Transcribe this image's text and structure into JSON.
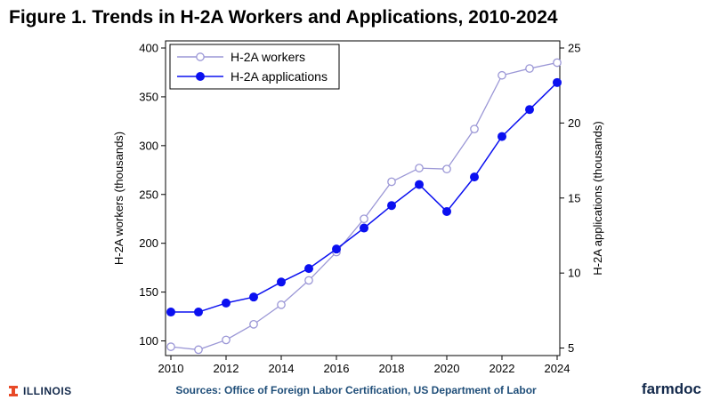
{
  "title": "Figure 1. Trends in H-2A Workers and Applications, 2010-2024",
  "footer": {
    "source": "Sources: Office of Foreign Labor Certification, US Department of Labor",
    "left_logo": "ILLINOIS",
    "right_logo": "farmdoc"
  },
  "colors": {
    "workers": "#9b97d6",
    "applications": "#0b10f0",
    "illinois_orange": "#e84a27",
    "illinois_blue": "#13294b"
  },
  "chart_data": {
    "type": "line",
    "x": [
      2010,
      2011,
      2012,
      2013,
      2014,
      2015,
      2016,
      2017,
      2018,
      2019,
      2020,
      2021,
      2022,
      2023,
      2024
    ],
    "xticks": [
      2010,
      2012,
      2014,
      2016,
      2018,
      2020,
      2022,
      2024
    ],
    "xlim": [
      2010,
      2024
    ],
    "y_left_label": "H-2A workers (thousands)",
    "y_left_ticks": [
      100,
      150,
      200,
      250,
      300,
      350,
      400
    ],
    "y_left_lim": [
      85,
      400
    ],
    "y_right_label": "H-2A applications (thousands)",
    "y_right_ticks": [
      5,
      10,
      15,
      20,
      25
    ],
    "y_right_lim": [
      4.5,
      25
    ],
    "grid": false,
    "legend_position": "top-left",
    "series": [
      {
        "name": "H-2A workers",
        "axis": "left",
        "marker": "hollow-circle",
        "values": [
          94,
          91,
          101,
          117,
          137,
          162,
          191,
          225,
          263,
          277,
          276,
          317,
          372,
          379,
          385
        ]
      },
      {
        "name": "H-2A applications",
        "axis": "right",
        "marker": "filled-circle",
        "values": [
          7.4,
          7.4,
          8.0,
          8.4,
          9.4,
          10.3,
          11.6,
          13.0,
          14.5,
          15.9,
          14.1,
          16.4,
          19.1,
          20.9,
          22.7
        ]
      }
    ]
  }
}
